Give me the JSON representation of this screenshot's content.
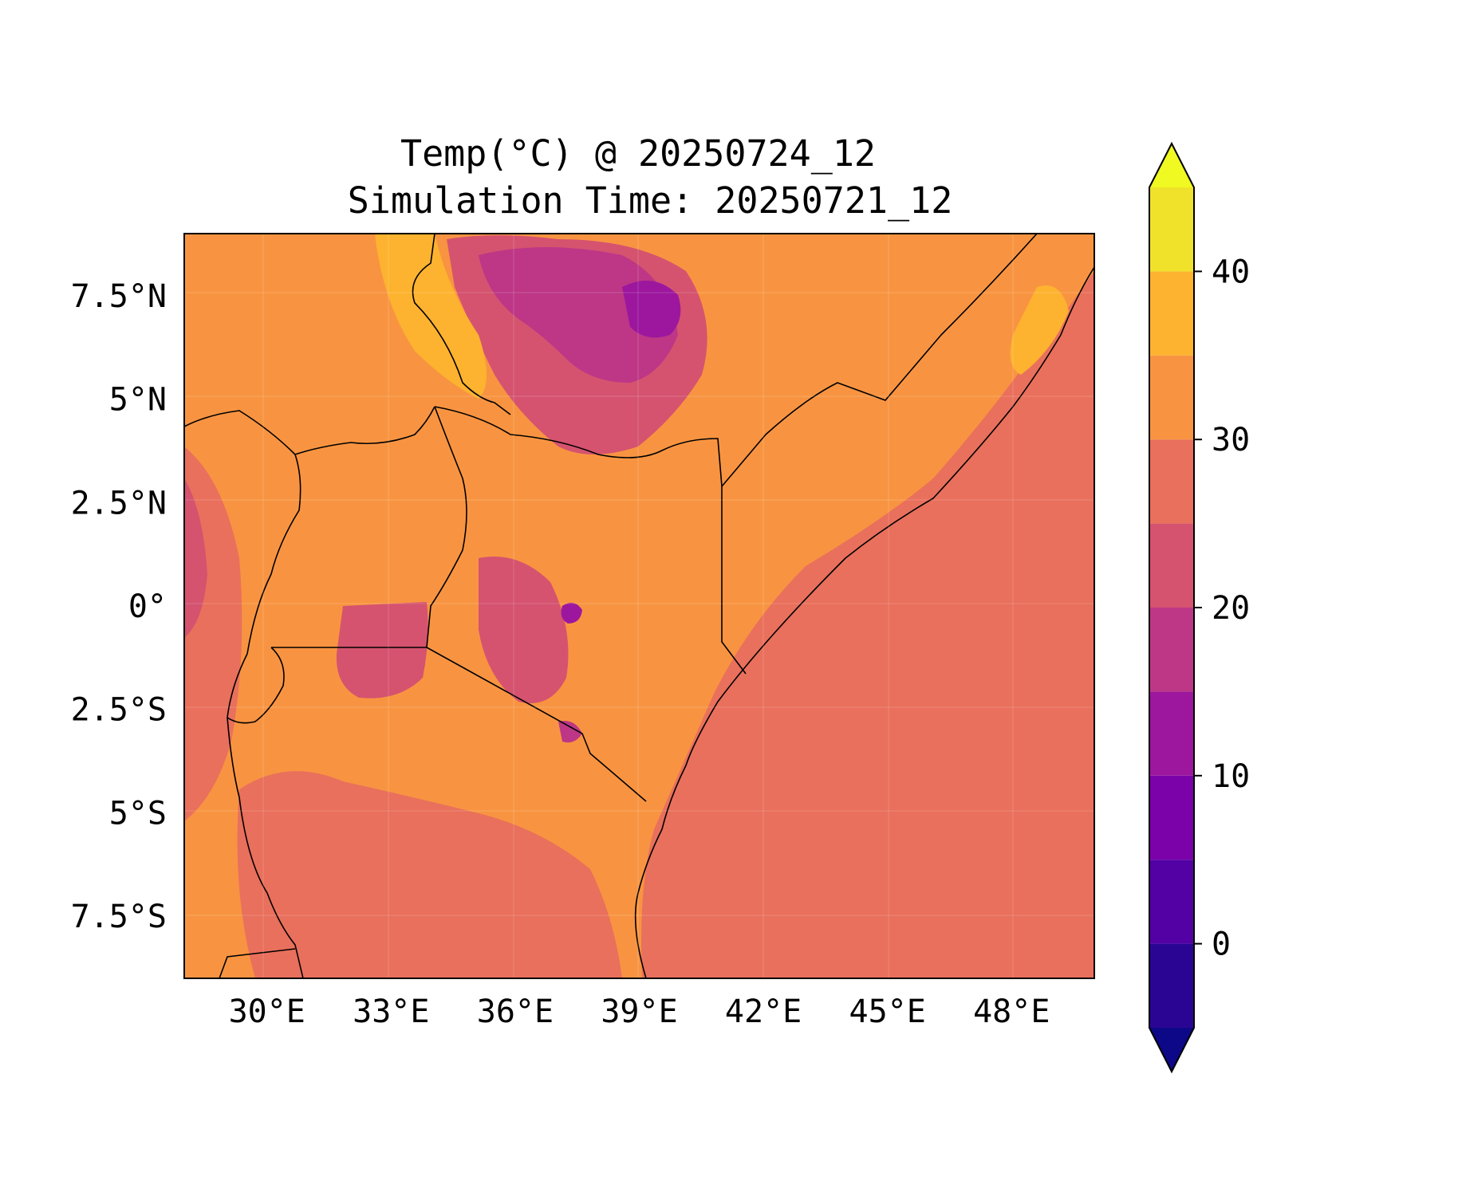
{
  "title": {
    "line1": "Temp(°C) @ 20250724_12",
    "line2": "Simulation Time: 20250721_12"
  },
  "chart_data": {
    "type": "heatmap",
    "title": "Temp(°C) @ 20250724_12\nSimulation Time: 20250721_12",
    "variable": "Temperature",
    "units": "°C",
    "map_extent": {
      "lon": [
        28,
        50
      ],
      "lat": [
        -9,
        9
      ]
    },
    "x_ticks": [
      30,
      33,
      36,
      39,
      42,
      45,
      48
    ],
    "x_tick_labels": [
      "30°E",
      "33°E",
      "36°E",
      "39°E",
      "42°E",
      "45°E",
      "48°E"
    ],
    "y_ticks": [
      7.5,
      5,
      2.5,
      0,
      -2.5,
      -5,
      -7.5
    ],
    "y_tick_labels": [
      "7.5°N",
      "5°N",
      "2.5°N",
      "0°",
      "2.5°S",
      "5°S",
      "7.5°S"
    ],
    "grid": true,
    "colorbar": {
      "levels": [
        -5,
        0,
        5,
        10,
        15,
        20,
        25,
        30,
        35,
        40,
        45
      ],
      "extend": "both",
      "tick_values": [
        0,
        10,
        20,
        30,
        40
      ],
      "tick_labels": [
        "0",
        "10",
        "20",
        "30",
        "40"
      ],
      "colors": [
        "#2a0593",
        "#5301a4",
        "#7b02a8",
        "#9c179e",
        "#bd3786",
        "#d5536f",
        "#e9705c",
        "#f89441",
        "#fdb32f",
        "#f0e22a"
      ],
      "under_color": "#0d0887",
      "over_color": "#f0f921",
      "position": "right"
    },
    "dominant_values": {
      "indian_ocean": "25–30",
      "somalia_ethiopia_lowlands": "30–35",
      "ethiopian_highlands": "10–25",
      "kenya_highlands": "5–25"
    }
  }
}
